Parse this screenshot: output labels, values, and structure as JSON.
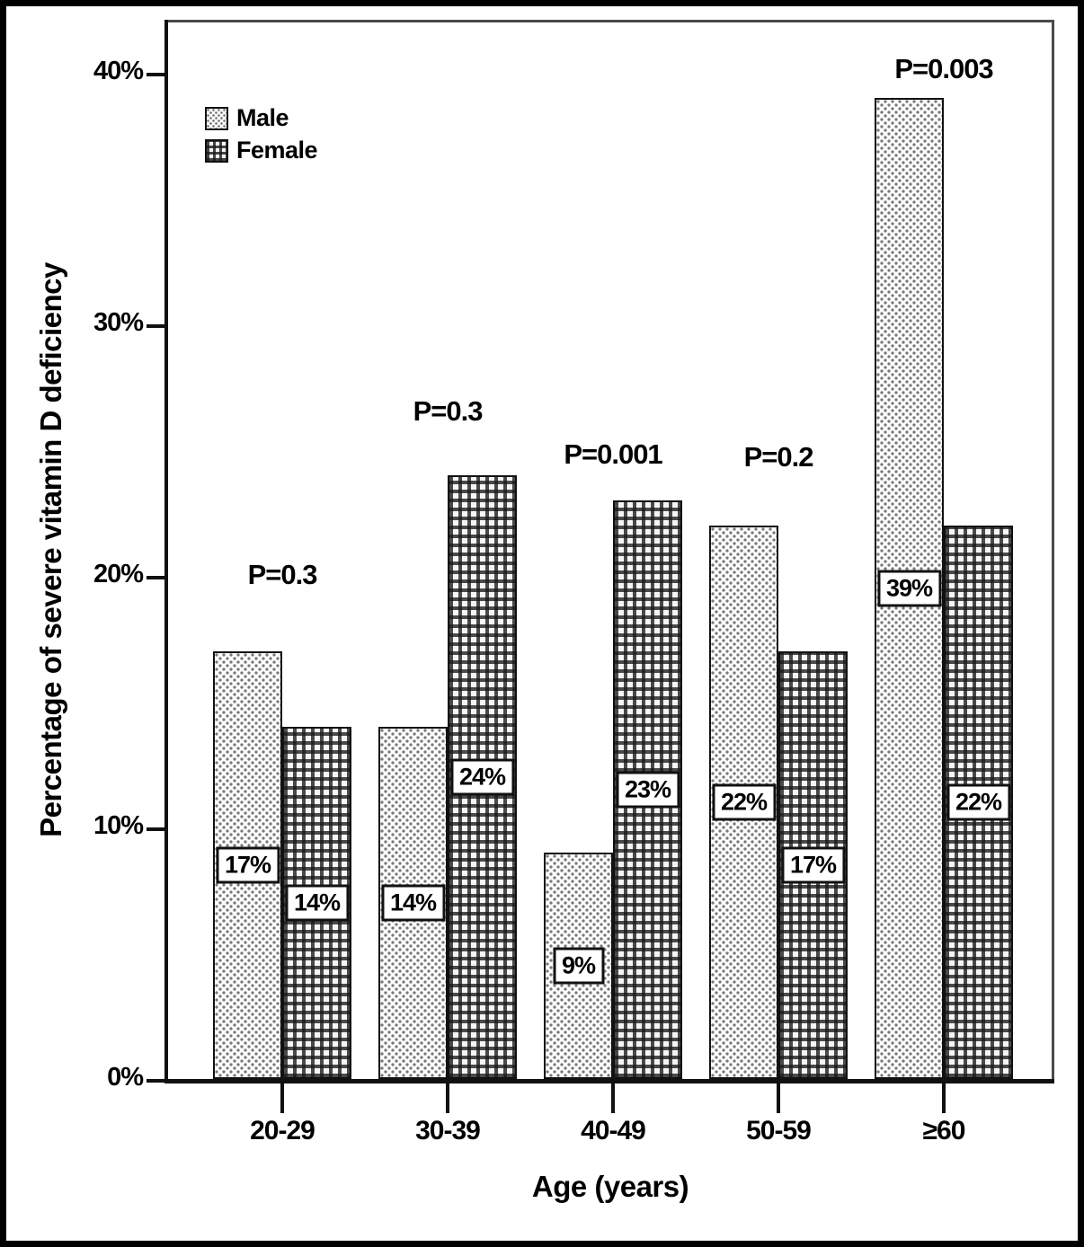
{
  "chart_data": {
    "type": "bar",
    "title": "",
    "xlabel": "Age (years)",
    "ylabel": "Percentage of severe vitamin D deficiency",
    "categories": [
      "20-29",
      "30-39",
      "40-49",
      "50-59",
      "≥60"
    ],
    "series": [
      {
        "name": "Male",
        "pattern": "dots",
        "values": [
          17,
          14,
          9,
          22,
          39
        ],
        "value_labels": [
          "17%",
          "14%",
          "9%",
          "22%",
          "39%"
        ]
      },
      {
        "name": "Female",
        "pattern": "grid",
        "values": [
          14,
          24,
          23,
          17,
          22
        ],
        "value_labels": [
          "14%",
          "24%",
          "23%",
          "17%",
          "22%"
        ]
      }
    ],
    "annotations": [
      {
        "text": "P=0.3",
        "category_index": 0,
        "y": 20.1
      },
      {
        "text": "P=0.3",
        "category_index": 1,
        "y": 26.6
      },
      {
        "text": "P=0.001",
        "category_index": 2,
        "y": 24.9
      },
      {
        "text": "P=0.2",
        "category_index": 3,
        "y": 24.8
      },
      {
        "text": "P=0.003",
        "category_index": 4,
        "y": 40.2
      }
    ],
    "yticks": [
      {
        "value": 0,
        "label": "0%"
      },
      {
        "value": 10,
        "label": "10%"
      },
      {
        "value": 20,
        "label": "20%"
      },
      {
        "value": 30,
        "label": "30%"
      },
      {
        "value": 40,
        "label": "40%"
      }
    ],
    "ylim": [
      0,
      42.2
    ],
    "grid": false,
    "legend_position": "top-left-inside",
    "colors": {
      "ink": "#000000",
      "background": "#ffffff",
      "box_line": "#4a4a4a"
    }
  }
}
